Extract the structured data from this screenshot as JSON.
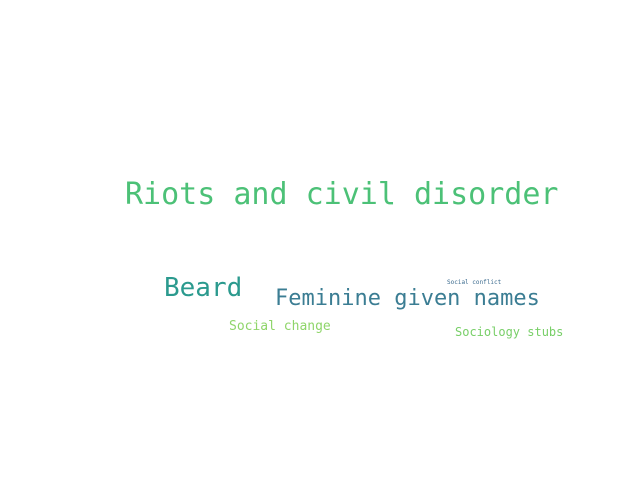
{
  "words": [
    {
      "text": "Riots and civil disorder",
      "color": "#4cc177"
    },
    {
      "text": "Beard",
      "color": "#2b9a8e"
    },
    {
      "text": "Feminine given names",
      "color": "#3b7d93"
    },
    {
      "text": "Social change",
      "color": "#8fd56a"
    },
    {
      "text": "Sociology stubs",
      "color": "#78cf68"
    },
    {
      "text": "Social conflict",
      "color": "#3a6a8e"
    }
  ]
}
